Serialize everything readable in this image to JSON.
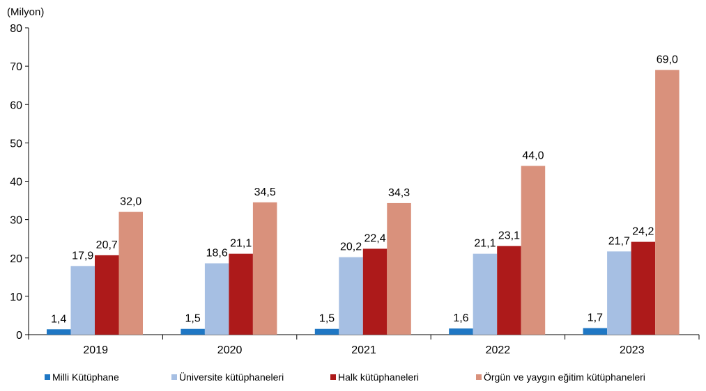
{
  "chart_data": {
    "type": "bar",
    "unit_label": "(Milyon)",
    "categories": [
      "2019",
      "2020",
      "2021",
      "2022",
      "2023"
    ],
    "ylim": [
      0,
      80
    ],
    "yticks": [
      0,
      10,
      20,
      30,
      40,
      50,
      60,
      70,
      80
    ],
    "grid": false,
    "legend_position": "bottom",
    "series": [
      {
        "name": "Milli Kütüphane",
        "color": "#1f77c4",
        "values": [
          1.4,
          1.5,
          1.5,
          1.6,
          1.7
        ],
        "labels": [
          "1,4",
          "1,5",
          "1,5",
          "1,6",
          "1,7"
        ]
      },
      {
        "name": "Üniversite kütüphaneleri",
        "color": "#a6bfe3",
        "values": [
          17.9,
          18.6,
          20.2,
          21.1,
          21.7
        ],
        "labels": [
          "17,9",
          "18,6",
          "20,2",
          "21,1",
          "21,7"
        ]
      },
      {
        "name": "Halk kütüphaneleri",
        "color": "#ad1a1a",
        "values": [
          20.7,
          21.1,
          22.4,
          23.1,
          24.2
        ],
        "labels": [
          "20,7",
          "21,1",
          "22,4",
          "23,1",
          "24,2"
        ]
      },
      {
        "name": "Örgün ve yaygın eğitim kütüphaneleri",
        "color": "#d9917c",
        "values": [
          32.0,
          34.5,
          34.3,
          44.0,
          69.0
        ],
        "labels": [
          "32,0",
          "34,5",
          "34,3",
          "44,0",
          "69,0"
        ]
      }
    ]
  }
}
